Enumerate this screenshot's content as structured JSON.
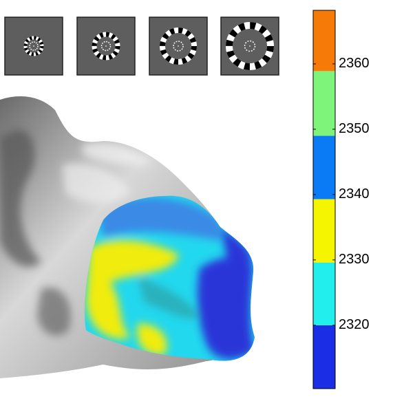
{
  "colorbar": {
    "lim": [
      2310.3,
      2368.2
    ],
    "ticks": [
      2320,
      2330,
      2340,
      2350,
      2360
    ],
    "segments": [
      {
        "color": "#1a2ee6",
        "from": 2310.3,
        "to": 2320
      },
      {
        "color": "#22eeee",
        "from": 2320,
        "to": 2329.6
      },
      {
        "color": "#f5f500",
        "from": 2329.6,
        "to": 2339.3
      },
      {
        "color": "#0a7af5",
        "from": 2339.3,
        "to": 2349
      },
      {
        "color": "#7ef57a",
        "from": 2349,
        "to": 2358.9
      },
      {
        "color": "#f57a08",
        "from": 2358.9,
        "to": 2368.2
      }
    ]
  }
}
